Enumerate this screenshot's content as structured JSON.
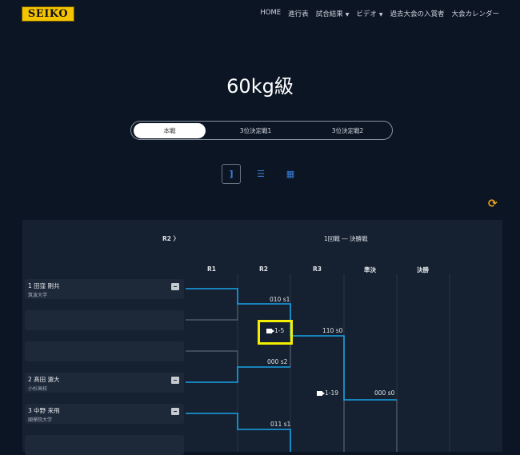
{
  "header": {
    "logo": "SEIKO",
    "nav": [
      "HOME",
      "進行表",
      "試合結果",
      "ビデオ",
      "過去大会の入賞者",
      "大会カレンダー"
    ]
  },
  "page": {
    "title": "60kg級"
  },
  "tabs": [
    {
      "label": "本戦",
      "active": true
    },
    {
      "label": "3位決定戦1"
    },
    {
      "label": "3位決定戦2"
    }
  ],
  "views": [
    "bracket-icon",
    "list-icon",
    "grid-icon"
  ],
  "bracket": {
    "nav_label": "R2 〉",
    "range_label": "1回戦 ― 決勝戦",
    "rounds": [
      "R1",
      "R2",
      "R3",
      "準決",
      "決勝"
    ],
    "players": [
      {
        "name": "1 田窪 剛共",
        "team": "筑波大学"
      },
      {
        "name": "",
        "team": ""
      },
      {
        "name": "",
        "team": ""
      },
      {
        "name": "2 髙田 選大",
        "team": "小杉高校"
      },
      {
        "name": "3 中野 来飛",
        "team": "國學院大学"
      },
      {
        "name": "",
        "team": ""
      }
    ],
    "scores": [
      "010 s1",
      "110 s0",
      "000 s2",
      "000 s0",
      "011 s1"
    ],
    "videos": [
      "1-5",
      "1-19"
    ]
  },
  "colors": {
    "accent": "#1aa3e8",
    "logo": "#f5c400",
    "refresh": "#e8a317",
    "highlight": "#f4ee00"
  }
}
